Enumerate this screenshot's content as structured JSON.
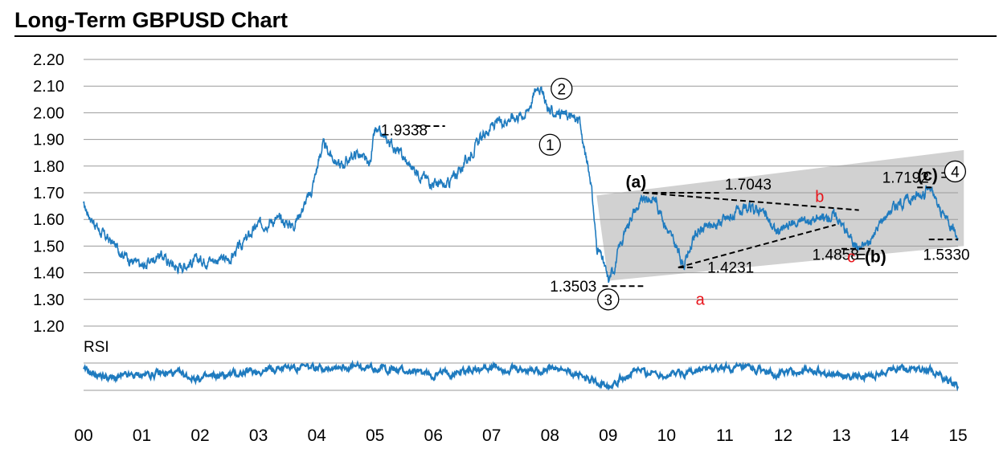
{
  "chart_data": {
    "type": "line",
    "title": "Long-Term GBPUSD Chart",
    "ylim": [
      1.2,
      2.2
    ],
    "yticks": [
      "1.20",
      "1.30",
      "1.40",
      "1.50",
      "1.60",
      "1.70",
      "1.80",
      "1.90",
      "2.00",
      "2.10",
      "2.20"
    ],
    "xlim": [
      2000,
      2015.1
    ],
    "x_tick_labels": [
      "00",
      "01",
      "02",
      "03",
      "04",
      "05",
      "06",
      "07",
      "08",
      "09",
      "10",
      "11",
      "12",
      "13",
      "14",
      "15"
    ],
    "rsi_label": "RSI",
    "price_keypoints": [
      [
        2000.0,
        1.65
      ],
      [
        2000.3,
        1.55
      ],
      [
        2000.8,
        1.45
      ],
      [
        2001.0,
        1.42
      ],
      [
        2001.3,
        1.47
      ],
      [
        2001.6,
        1.42
      ],
      [
        2002.0,
        1.45
      ],
      [
        2002.5,
        1.45
      ],
      [
        2003.0,
        1.58
      ],
      [
        2003.3,
        1.6
      ],
      [
        2003.6,
        1.58
      ],
      [
        2003.9,
        1.7
      ],
      [
        2004.1,
        1.88
      ],
      [
        2004.4,
        1.8
      ],
      [
        2004.7,
        1.85
      ],
      [
        2004.9,
        1.8
      ],
      [
        2005.0,
        1.93
      ],
      [
        2005.3,
        1.88
      ],
      [
        2005.6,
        1.8
      ],
      [
        2005.9,
        1.75
      ],
      [
        2006.2,
        1.72
      ],
      [
        2006.5,
        1.8
      ],
      [
        2006.8,
        1.9
      ],
      [
        2007.0,
        1.95
      ],
      [
        2007.3,
        1.98
      ],
      [
        2007.6,
        2.0
      ],
      [
        2007.8,
        2.11
      ],
      [
        2008.0,
        2.0
      ],
      [
        2008.2,
        2.0
      ],
      [
        2008.5,
        1.97
      ],
      [
        2008.6,
        1.85
      ],
      [
        2008.7,
        1.75
      ],
      [
        2008.8,
        1.5
      ],
      [
        2008.9,
        1.45
      ],
      [
        2009.0,
        1.37
      ],
      [
        2009.1,
        1.42
      ],
      [
        2009.2,
        1.5
      ],
      [
        2009.4,
        1.62
      ],
      [
        2009.6,
        1.67
      ],
      [
        2009.8,
        1.68
      ],
      [
        2010.0,
        1.57
      ],
      [
        2010.2,
        1.48
      ],
      [
        2010.3,
        1.43
      ],
      [
        2010.5,
        1.55
      ],
      [
        2010.8,
        1.58
      ],
      [
        2011.0,
        1.6
      ],
      [
        2011.3,
        1.63
      ],
      [
        2011.6,
        1.64
      ],
      [
        2011.9,
        1.55
      ],
      [
        2012.1,
        1.58
      ],
      [
        2012.4,
        1.6
      ],
      [
        2012.7,
        1.6
      ],
      [
        2012.9,
        1.62
      ],
      [
        2013.1,
        1.55
      ],
      [
        2013.3,
        1.49
      ],
      [
        2013.5,
        1.52
      ],
      [
        2013.7,
        1.6
      ],
      [
        2013.9,
        1.65
      ],
      [
        2014.2,
        1.68
      ],
      [
        2014.4,
        1.7
      ],
      [
        2014.5,
        1.72
      ],
      [
        2014.7,
        1.63
      ],
      [
        2014.9,
        1.58
      ],
      [
        2015.0,
        1.53
      ]
    ],
    "rsi_keypoints": [
      [
        2000.0,
        55
      ],
      [
        2000.5,
        45
      ],
      [
        2001.0,
        50
      ],
      [
        2001.5,
        52
      ],
      [
        2002.0,
        45
      ],
      [
        2002.5,
        50
      ],
      [
        2003.0,
        55
      ],
      [
        2003.5,
        60
      ],
      [
        2004.0,
        58
      ],
      [
        2004.3,
        62
      ],
      [
        2004.8,
        58
      ],
      [
        2005.0,
        60
      ],
      [
        2005.5,
        55
      ],
      [
        2006.0,
        50
      ],
      [
        2006.5,
        55
      ],
      [
        2007.0,
        60
      ],
      [
        2007.5,
        55
      ],
      [
        2008.0,
        58
      ],
      [
        2008.5,
        50
      ],
      [
        2008.8,
        40
      ],
      [
        2009.0,
        38
      ],
      [
        2009.5,
        55
      ],
      [
        2010.0,
        50
      ],
      [
        2010.5,
        55
      ],
      [
        2011.0,
        58
      ],
      [
        2011.5,
        55
      ],
      [
        2012.0,
        52
      ],
      [
        2012.5,
        55
      ],
      [
        2013.0,
        50
      ],
      [
        2013.4,
        45
      ],
      [
        2013.8,
        55
      ],
      [
        2014.0,
        60
      ],
      [
        2014.5,
        58
      ],
      [
        2014.7,
        50
      ],
      [
        2015.0,
        35
      ]
    ],
    "annotations": {
      "levels": [
        "1.9338",
        "1.3503",
        "1.4231",
        "1.7043",
        "1.4858",
        "1.7192",
        "1.5330"
      ],
      "wave_labels": [
        "1",
        "2",
        "3",
        "4"
      ],
      "bold_labels": [
        "(a)",
        "(b)",
        "(c)"
      ],
      "red_labels": [
        "a",
        "b",
        "c"
      ],
      "equals": "="
    },
    "series_color": "#1f7bbf",
    "channel_color": "#c9c9c9"
  }
}
